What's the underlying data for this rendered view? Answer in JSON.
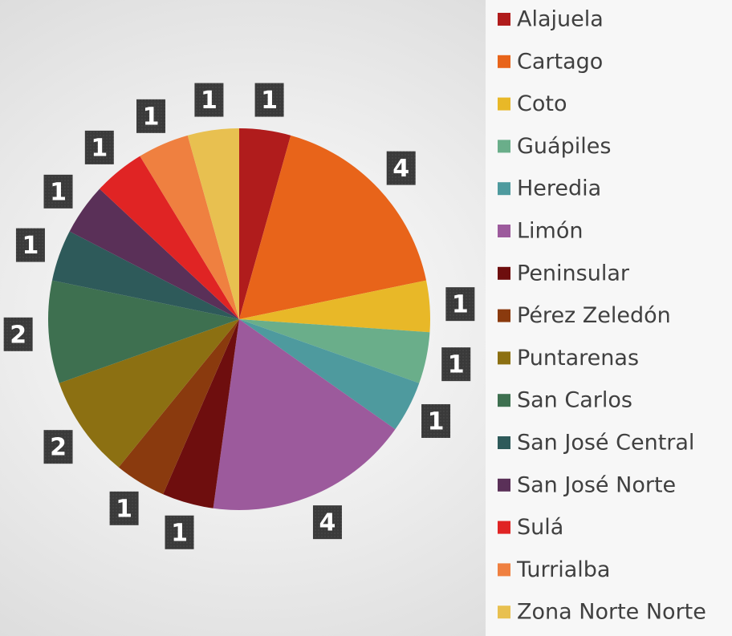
{
  "chart_data": {
    "type": "pie",
    "categories": [
      "Alajuela",
      "Cartago",
      "Coto",
      "Guápiles",
      "Heredia",
      "Limón",
      "Peninsular",
      "Pérez Zeledón",
      "Puntarenas",
      "San Carlos",
      "San José Central",
      "San José Norte",
      "Sulá",
      "Turrialba",
      "Zona Norte Norte"
    ],
    "values": [
      1,
      4,
      1,
      1,
      1,
      4,
      1,
      1,
      2,
      2,
      1,
      1,
      1,
      1,
      1
    ],
    "colors": [
      "#b01c1c",
      "#e8641a",
      "#e8b828",
      "#6aae8a",
      "#4e9a9e",
      "#9c5a9c",
      "#6e0e0e",
      "#8a3a0e",
      "#8c7012",
      "#3e7050",
      "#2e5a5a",
      "#5a3058",
      "#e02424",
      "#ef8040",
      "#e8c050"
    ],
    "legend": "right"
  }
}
